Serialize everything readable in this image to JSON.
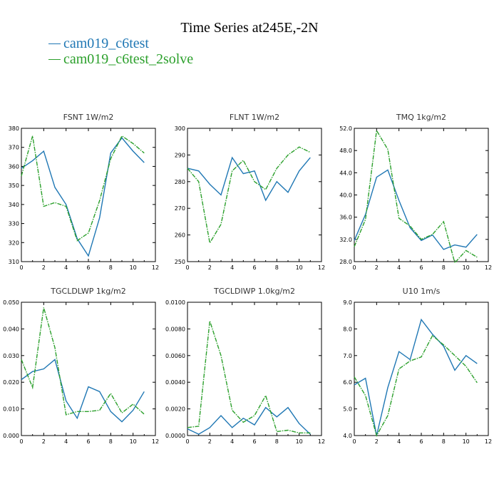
{
  "figure": {
    "title": "Time Series at245E,-2N",
    "legend": [
      {
        "label": "cam019_c6test",
        "color": "#1f77b4"
      },
      {
        "label": "cam019_c6test_2solve",
        "color": "#2ca02c"
      }
    ]
  },
  "chart_data": [
    {
      "type": "line",
      "title": "FSNT   1W/m2",
      "x": [
        0,
        1,
        2,
        3,
        4,
        5,
        6,
        7,
        8,
        9,
        10,
        11
      ],
      "xlim": [
        0,
        12
      ],
      "xticks": [
        0,
        2,
        4,
        6,
        8,
        10,
        12
      ],
      "ylim": [
        310,
        380
      ],
      "yticks": [
        310,
        320,
        330,
        340,
        350,
        360,
        370,
        380
      ],
      "ytick_labels": [
        "310",
        "320",
        "330",
        "340",
        "350",
        "360",
        "370",
        "380"
      ],
      "series": [
        {
          "values": [
            359,
            363,
            368,
            349,
            340,
            322,
            313,
            333,
            367,
            375,
            368,
            362
          ],
          "color": "#1f77b4",
          "dashed": false
        },
        {
          "values": [
            355,
            376,
            339,
            341,
            339,
            321,
            325,
            342,
            364,
            376,
            372,
            367
          ],
          "color": "#2ca02c",
          "dashed": true
        }
      ]
    },
    {
      "type": "line",
      "title": "FLNT   1W/m2",
      "x": [
        0,
        1,
        2,
        3,
        4,
        5,
        6,
        7,
        8,
        9,
        10,
        11
      ],
      "xlim": [
        0,
        12
      ],
      "xticks": [
        0,
        2,
        4,
        6,
        8,
        10,
        12
      ],
      "ylim": [
        250,
        300
      ],
      "yticks": [
        250,
        260,
        270,
        280,
        290,
        300
      ],
      "ytick_labels": [
        "250",
        "260",
        "270",
        "280",
        "290",
        "300"
      ],
      "series": [
        {
          "values": [
            285,
            284,
            279,
            275,
            289,
            283,
            284,
            273,
            280,
            276,
            284,
            289
          ],
          "color": "#1f77b4",
          "dashed": false
        },
        {
          "values": [
            285,
            280,
            257,
            264,
            284,
            288,
            280,
            277,
            285,
            290,
            293,
            291
          ],
          "color": "#2ca02c",
          "dashed": true
        }
      ]
    },
    {
      "type": "line",
      "title": "TMQ   1kg/m2",
      "x": [
        0,
        1,
        2,
        3,
        4,
        5,
        6,
        7,
        8,
        9,
        10,
        11
      ],
      "xlim": [
        0,
        12
      ],
      "xticks": [
        0,
        2,
        4,
        6,
        8,
        10,
        12
      ],
      "ylim": [
        28,
        52
      ],
      "yticks": [
        28,
        32,
        36,
        40,
        44,
        48,
        52
      ],
      "ytick_labels": [
        "28.0",
        "32.0",
        "36.0",
        "40.0",
        "44.0",
        "48.0",
        "52.0"
      ],
      "series": [
        {
          "values": [
            31.8,
            36.5,
            43.2,
            44.5,
            39,
            34.1,
            31.8,
            32.8,
            30.2,
            31,
            30.6,
            32.9
          ],
          "color": "#1f77b4",
          "dashed": false
        },
        {
          "values": [
            30.7,
            35.6,
            51.6,
            48.2,
            35.8,
            34.4,
            32,
            32.9,
            35.2,
            27.8,
            30,
            28.8
          ],
          "color": "#2ca02c",
          "dashed": true
        }
      ]
    },
    {
      "type": "line",
      "title": "TGCLDLWP   1kg/m2",
      "x": [
        0,
        1,
        2,
        3,
        4,
        5,
        6,
        7,
        8,
        9,
        10,
        11
      ],
      "xlim": [
        0,
        12
      ],
      "xticks": [
        0,
        2,
        4,
        6,
        8,
        10,
        12
      ],
      "ylim": [
        0,
        0.05
      ],
      "yticks": [
        0,
        0.01,
        0.02,
        0.03,
        0.04,
        0.05
      ],
      "ytick_labels": [
        "0.000",
        "0.010",
        "0.020",
        "0.030",
        "0.040",
        "0.050"
      ],
      "series": [
        {
          "values": [
            0.021,
            0.024,
            0.025,
            0.0285,
            0.013,
            0.0065,
            0.0183,
            0.0165,
            0.009,
            0.0052,
            0.0095,
            0.0165
          ],
          "color": "#1f77b4",
          "dashed": false
        },
        {
          "values": [
            0.0285,
            0.018,
            0.048,
            0.033,
            0.0078,
            0.009,
            0.009,
            0.0095,
            0.0158,
            0.0085,
            0.0118,
            0.008
          ],
          "color": "#2ca02c",
          "dashed": true
        }
      ]
    },
    {
      "type": "line",
      "title": "TGCLDIWP   1.0kg/m2",
      "x": [
        0,
        1,
        2,
        3,
        4,
        5,
        6,
        7,
        8,
        9,
        10,
        11
      ],
      "xlim": [
        0,
        12
      ],
      "xticks": [
        0,
        2,
        4,
        6,
        8,
        10,
        12
      ],
      "ylim": [
        0,
        0.01
      ],
      "yticks": [
        0,
        0.002,
        0.004,
        0.006,
        0.008,
        0.01
      ],
      "ytick_labels": [
        "0.0000",
        "0.0020",
        "0.0040",
        "0.0060",
        "0.0080",
        "0.0100"
      ],
      "series": [
        {
          "values": [
            0.0005,
            0.0001,
            0.0006,
            0.0015,
            0.0006,
            0.0013,
            0.0008,
            0.0021,
            0.0014,
            0.0021,
            0.0009,
            0.0001
          ],
          "color": "#1f77b4",
          "dashed": false
        },
        {
          "values": [
            0.0006,
            0.0007,
            0.0086,
            0.006,
            0.0019,
            0.001,
            0.0015,
            0.003,
            0.0003,
            0.0004,
            0.0002,
            0.0002
          ],
          "color": "#2ca02c",
          "dashed": true
        }
      ]
    },
    {
      "type": "line",
      "title": "U10   1m/s",
      "x": [
        0,
        1,
        2,
        3,
        4,
        5,
        6,
        7,
        8,
        9,
        10,
        11
      ],
      "xlim": [
        0,
        12
      ],
      "xticks": [
        0,
        2,
        4,
        6,
        8,
        10,
        12
      ],
      "ylim": [
        4,
        9
      ],
      "yticks": [
        4,
        5,
        6,
        7,
        8,
        9
      ],
      "ytick_labels": [
        "4.0",
        "5.0",
        "6.0",
        "7.0",
        "8.0",
        "9.0"
      ],
      "series": [
        {
          "values": [
            5.9,
            6.15,
            4.0,
            5.8,
            7.15,
            6.85,
            8.35,
            7.8,
            7.35,
            6.45,
            7.0,
            6.7
          ],
          "color": "#1f77b4",
          "dashed": false
        },
        {
          "values": [
            6.2,
            5.5,
            4.0,
            4.75,
            6.5,
            6.8,
            6.95,
            7.75,
            7.4,
            7.0,
            6.6,
            5.98
          ],
          "color": "#2ca02c",
          "dashed": true
        }
      ]
    }
  ]
}
